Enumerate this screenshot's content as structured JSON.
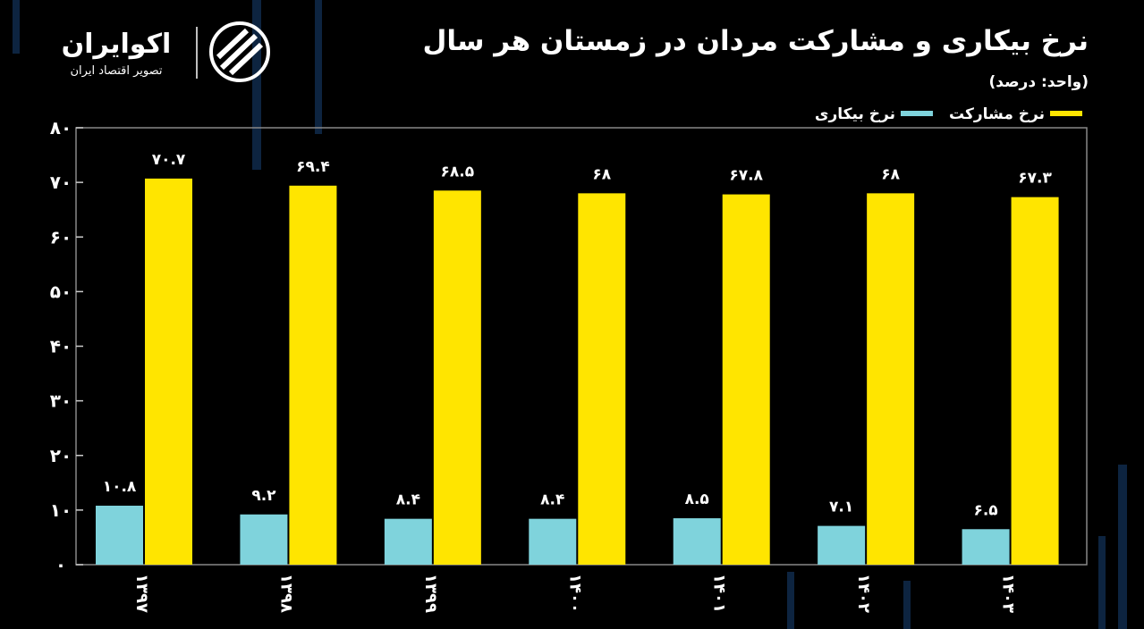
{
  "header": {
    "logo": "اکوایران",
    "logo_tagline": "تصویر اقتصاد ایران"
  },
  "chart_data": {
    "type": "bar",
    "title": "نرخ بیکاری و مشارکت مردان در زمستان هر سال",
    "subtitle": "(واحد: درصد)",
    "categories": [
      "۱۳۹۷",
      "۱۳۹۸",
      "۱۳۹۹",
      "۱۴۰۰",
      "۱۴۰۱",
      "۱۴۰۲",
      "۱۴۰۳"
    ],
    "series": [
      {
        "name": "نرخ بیکاری",
        "color": "#7fd3dc",
        "values": [
          10.8,
          9.2,
          8.4,
          8.4,
          8.5,
          7.1,
          6.5
        ],
        "value_labels": [
          "۱۰.۸",
          "۹.۲",
          "۸.۴",
          "۸.۴",
          "۸.۵",
          "۷.۱",
          "۶.۵"
        ]
      },
      {
        "name": "نرخ مشارکت",
        "color": "#ffe500",
        "values": [
          70.7,
          69.4,
          68.5,
          68,
          67.8,
          68,
          67.3
        ],
        "value_labels": [
          "۷۰.۷",
          "۶۹.۴",
          "۶۸.۵",
          "۶۸",
          "۶۷.۸",
          "۶۸",
          "۶۷.۳"
        ]
      }
    ],
    "ylim": [
      0,
      80
    ],
    "yticks": [
      {
        "value": 0,
        "label": "۰"
      },
      {
        "value": 10,
        "label": "۱۰"
      },
      {
        "value": 20,
        "label": "۲۰"
      },
      {
        "value": 30,
        "label": "۳۰"
      },
      {
        "value": 40,
        "label": "۴۰"
      },
      {
        "value": 50,
        "label": "۵۰"
      },
      {
        "value": 60,
        "label": "۶۰"
      },
      {
        "value": 70,
        "label": "۷۰"
      },
      {
        "value": 80,
        "label": "۸۰"
      }
    ],
    "legend": "top-right"
  }
}
